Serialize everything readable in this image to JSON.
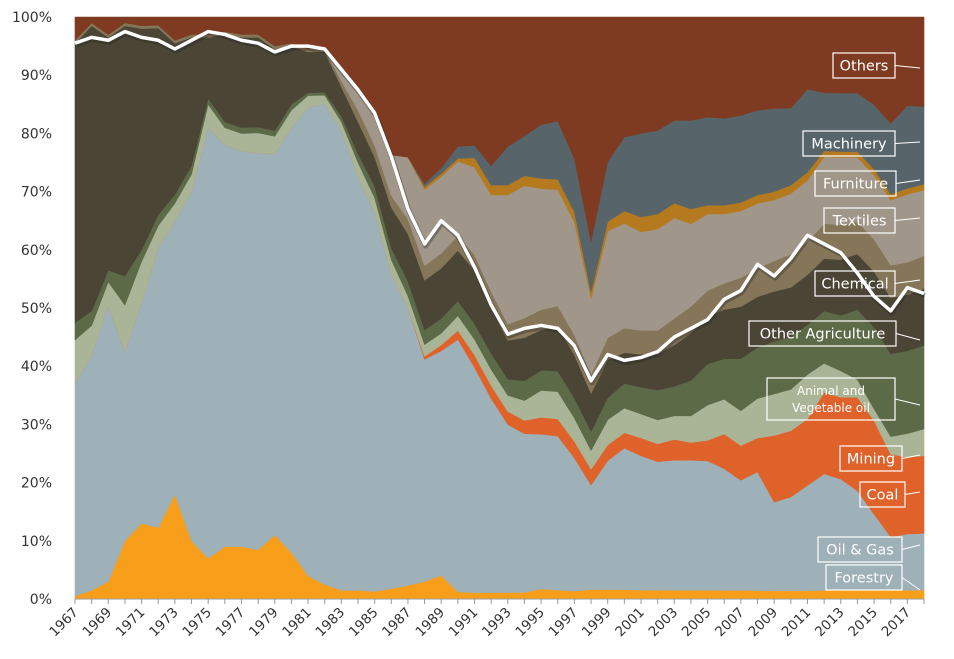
{
  "chart_data": {
    "type": "area",
    "stacked": "percent",
    "title": "",
    "xlabel": "",
    "ylabel": "",
    "ylim": [
      0,
      100
    ],
    "y_ticks": [
      "0%",
      "10%",
      "20%",
      "30%",
      "40%",
      "50%",
      "60%",
      "70%",
      "80%",
      "90%",
      "100%"
    ],
    "x_tick_labels": [
      "1967",
      "1969",
      "1971",
      "1973",
      "1975",
      "1977",
      "1979",
      "1981",
      "1983",
      "1985",
      "1987",
      "1989",
      "1991",
      "1993",
      "1995",
      "1997",
      "1999",
      "2001",
      "2003",
      "2005",
      "2007",
      "2009",
      "2011",
      "2013",
      "2015",
      "2017"
    ],
    "x": [
      1967,
      1968,
      1969,
      1970,
      1971,
      1972,
      1973,
      1974,
      1975,
      1976,
      1977,
      1978,
      1979,
      1980,
      1981,
      1982,
      1983,
      1984,
      1985,
      1986,
      1987,
      1988,
      1989,
      1990,
      1991,
      1992,
      1993,
      1994,
      1995,
      1996,
      1997,
      1998,
      1999,
      2000,
      2001,
      2002,
      2003,
      2004,
      2005,
      2006,
      2007,
      2008,
      2009,
      2010,
      2011,
      2012,
      2013,
      2014,
      2015,
      2016,
      2017,
      2018
    ],
    "series": [
      {
        "name": "Forestry",
        "color": "#F79E1B",
        "values": [
          0.5,
          1.5,
          3,
          10,
          13,
          13,
          18,
          10,
          7,
          9,
          9,
          8.5,
          11,
          8,
          4,
          2.5,
          1.5,
          1.5,
          1.3,
          1.8,
          2.3,
          3,
          4,
          1.2,
          1,
          1,
          1,
          1,
          1.5,
          1.3,
          1.2,
          1.5,
          1.5,
          1.5,
          1.5,
          1.5,
          1.5,
          1.5,
          1.5,
          1.5,
          1.5,
          1.5,
          1.5,
          1.5,
          1.5,
          1.5,
          1.5,
          1.5,
          1.5,
          1.5,
          1.5,
          1.5
        ]
      },
      {
        "name": "Oil & Gas",
        "color": "#9EB0B8",
        "values": [
          36.5,
          40.5,
          47.5,
          32.5,
          38,
          51,
          47,
          60,
          74,
          69,
          68,
          68.5,
          65.5,
          73,
          80.5,
          83,
          79,
          71,
          65,
          54,
          47,
          38,
          38,
          42.5,
          36,
          30,
          26,
          24,
          23,
          22.5,
          20,
          16.5,
          20.5,
          23,
          22.5,
          21.5,
          22,
          22,
          22,
          21,
          19,
          21,
          16,
          17,
          19,
          20,
          19,
          17,
          13,
          9,
          9.5,
          9.5
        ]
      },
      {
        "name": "Coal",
        "color": "#E0622B",
        "values": [
          0,
          0,
          0,
          0,
          0,
          0,
          0,
          0,
          0,
          0,
          0,
          0,
          0,
          0,
          0,
          0,
          0,
          0,
          0,
          0,
          0,
          0.5,
          1,
          1.5,
          2,
          2,
          2,
          2,
          2.5,
          2.5,
          2.5,
          2.5,
          2.5,
          2.5,
          3,
          3,
          3.5,
          3,
          3.5,
          6,
          6,
          6,
          12,
          12,
          12,
          14,
          14,
          16,
          16,
          14,
          13,
          13
        ]
      },
      {
        "name": "Mining",
        "color": "#A9B596",
        "values": [
          7.5,
          5,
          4,
          8,
          7,
          4,
          3,
          3,
          4,
          3,
          3,
          3.5,
          3,
          3,
          2,
          1.5,
          1.5,
          2.5,
          2.5,
          2.5,
          2,
          2,
          2,
          2.5,
          2.5,
          2.5,
          2.5,
          3,
          4,
          4,
          3.5,
          3,
          4,
          4,
          4,
          4,
          4,
          4.5,
          6,
          6,
          6,
          7,
          7.5,
          7.5,
          8,
          5,
          4.5,
          3,
          2,
          3,
          4,
          4.5
        ]
      },
      {
        "name": "Animal and Vegetable oil",
        "color": "#5C6A48",
        "values": [
          3,
          2.5,
          2,
          5,
          2,
          2,
          1.5,
          1.5,
          1,
          1,
          1,
          1,
          1,
          1,
          0.5,
          0.5,
          1,
          1.5,
          2,
          2,
          2.5,
          2.5,
          2.5,
          2.5,
          2.5,
          2.5,
          2.5,
          3,
          3,
          3,
          3,
          3,
          3.5,
          4,
          4.5,
          5,
          5,
          6,
          7,
          7,
          9,
          9,
          9.5,
          9.5,
          9,
          9,
          9.5,
          12,
          14,
          14,
          14,
          14
        ]
      },
      {
        "name": "Other Agriculture",
        "color": "#4B4536",
        "values": [
          48,
          49,
          40,
          43,
          38,
          34,
          26,
          22,
          10.5,
          15,
          15.5,
          15.5,
          14,
          10,
          7,
          7,
          5,
          5.5,
          5,
          7,
          8,
          8.5,
          8.5,
          8.5,
          8.5,
          7,
          6,
          6.5,
          6,
          6.5,
          6.5,
          6,
          6,
          5,
          5.5,
          6,
          7,
          8,
          8,
          8.5,
          9,
          9,
          9,
          9,
          9,
          9,
          9.5,
          9.5,
          9.5,
          9.5,
          9.5,
          9.5
        ]
      },
      {
        "name": "Chemical",
        "color": "#857659",
        "values": [
          0.5,
          0.5,
          0.5,
          0.5,
          0.5,
          0.5,
          0.5,
          0.5,
          0.5,
          0.5,
          0.5,
          0.5,
          0.5,
          0.5,
          0.5,
          0.5,
          1,
          2,
          2,
          2,
          2.5,
          2.5,
          2.5,
          2.5,
          2.5,
          2.5,
          2.5,
          3,
          3,
          3,
          3,
          3,
          3.5,
          4,
          4,
          4,
          4.5,
          4.5,
          4.5,
          4.5,
          5,
          5,
          5.5,
          6,
          6,
          6,
          6,
          5.5,
          5.5,
          5.5,
          5.5,
          5.5
        ]
      },
      {
        "name": "Textiles",
        "color": "#A1968A",
        "values": [
          0,
          0,
          0,
          0,
          0,
          0,
          0,
          0,
          0,
          0,
          0,
          0,
          0,
          0,
          0,
          0,
          2.5,
          4,
          5,
          7,
          10.5,
          13,
          13,
          12.5,
          14,
          15,
          20,
          20,
          18,
          17,
          17,
          12,
          17,
          17,
          16.5,
          17,
          17,
          14,
          13,
          12,
          11.5,
          11.5,
          11,
          11,
          11,
          11.5,
          11.5,
          11,
          11,
          11,
          11.5,
          11
        ]
      },
      {
        "name": "Furniture",
        "color": "#B57A1E",
        "values": [
          0,
          0,
          0,
          0,
          0,
          0,
          0,
          0,
          0,
          0,
          0,
          0,
          0,
          0,
          0,
          0,
          0,
          0,
          0,
          0,
          0,
          0.5,
          0.5,
          0.5,
          1.5,
          1.5,
          1.5,
          1.5,
          1.5,
          1.5,
          1.5,
          1,
          1.5,
          2,
          2.5,
          2.5,
          2.5,
          2.5,
          1.5,
          1.5,
          1.5,
          1.5,
          1.5,
          1.5,
          1.5,
          1,
          1,
          1,
          1,
          1,
          1,
          1
        ]
      },
      {
        "name": "Machinery",
        "color": "#57656B",
        "values": [
          0,
          0,
          0,
          0,
          0,
          0,
          0,
          0,
          0,
          0,
          0,
          0,
          0,
          0,
          0,
          0,
          0,
          0,
          0,
          0,
          0,
          0.5,
          1,
          2,
          2,
          3,
          6,
          6,
          8,
          8.5,
          8,
          8,
          9.5,
          12,
          14,
          14,
          14,
          15,
          15,
          15,
          15,
          15,
          15,
          14,
          15,
          10,
          10,
          10,
          11,
          12,
          14,
          13
        ]
      },
      {
        "name": "Others",
        "color": "#7F3B22",
        "values": [
          4,
          1,
          3,
          1,
          1.5,
          1.5,
          4,
          3,
          3,
          2.5,
          3,
          3,
          5,
          4.5,
          5.5,
          5.5,
          8.5,
          12,
          17,
          23.7,
          23.7,
          28.5,
          25.5,
          21.8,
          20.5,
          23,
          20,
          18,
          16,
          15.2,
          21.3,
          35.5,
          23,
          19.5,
          19.5,
          19,
          17.5,
          17.5,
          17,
          17.5,
          17,
          16.5,
          16.5,
          16.5,
          13,
          13,
          13,
          13,
          15,
          18,
          15,
          15
        ]
      }
    ],
    "white_line": {
      "note": "",
      "values": [
        95.5,
        96.5,
        96,
        97.5,
        96.5,
        96,
        94.5,
        96,
        97.5,
        97,
        96,
        95.5,
        94,
        95,
        95,
        94.5,
        91,
        87.5,
        83.5,
        76,
        67,
        61,
        65,
        62.5,
        57,
        50.5,
        45.5,
        46.5,
        47,
        46.5,
        43.5,
        37.5,
        42,
        41,
        41.5,
        42.5,
        45,
        46.5,
        48,
        51.5,
        53,
        57.5,
        55.5,
        58.5,
        62.5,
        61,
        59.5,
        56,
        52,
        49.5,
        53.5,
        52.5
      ]
    },
    "legend": [
      "Others",
      "Machinery",
      "Furniture",
      "Textiles",
      "Chemical",
      "Other Agriculture",
      "Animal and\nVegetable oil",
      "Mining",
      "Coal",
      "Oil & Gas",
      "Forestry"
    ],
    "grid": false,
    "legend_placement": "right, inline callouts"
  }
}
